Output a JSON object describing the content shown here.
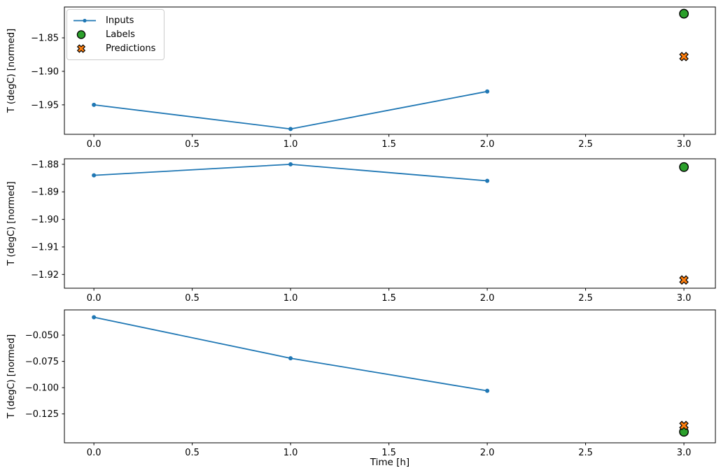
{
  "figure": {
    "background": "#ffffff",
    "xlabel": "Time [h]"
  },
  "colors": {
    "inputs": "#1f77b4",
    "labels": "#2ca02c",
    "predictions": "#ff7f0e",
    "marker_edge": "#000000",
    "axis": "#000000",
    "legend_border": "#cccccc"
  },
  "legend": {
    "position": "upper-left",
    "entries": [
      "Inputs",
      "Labels",
      "Predictions"
    ]
  },
  "chart_data": [
    {
      "type": "line",
      "title": "",
      "ylabel": "T (degC) [normed]",
      "xlabel": "",
      "grid": false,
      "legend_visible": true,
      "xlim": [
        -0.15,
        3.16
      ],
      "ylim": [
        -1.994,
        -1.804
      ],
      "xticks": [
        0.0,
        0.5,
        1.0,
        1.5,
        2.0,
        2.5,
        3.0
      ],
      "xtick_labels": [
        "0.0",
        "0.5",
        "1.0",
        "1.5",
        "2.0",
        "2.5",
        "3.0"
      ],
      "yticks": [
        -1.85,
        -1.9,
        -1.95
      ],
      "ytick_labels": [
        "−1.85",
        "−1.90",
        "−1.95"
      ],
      "series": [
        {
          "name": "Inputs",
          "kind": "line",
          "marker": "dot",
          "color": "#1f77b4",
          "x": [
            0,
            1,
            2
          ],
          "y": [
            -1.95,
            -1.986,
            -1.93
          ]
        },
        {
          "name": "Labels",
          "kind": "scatter",
          "marker": "circle",
          "color": "#2ca02c",
          "x": [
            3
          ],
          "y": [
            -1.814
          ]
        },
        {
          "name": "Predictions",
          "kind": "scatter",
          "marker": "X",
          "color": "#ff7f0e",
          "x": [
            3
          ],
          "y": [
            -1.878
          ]
        }
      ]
    },
    {
      "type": "line",
      "title": "",
      "ylabel": "T (degC) [normed]",
      "xlabel": "",
      "grid": false,
      "legend_visible": false,
      "xlim": [
        -0.15,
        3.16
      ],
      "ylim": [
        -1.925,
        -1.878
      ],
      "xticks": [
        0.0,
        0.5,
        1.0,
        1.5,
        2.0,
        2.5,
        3.0
      ],
      "xtick_labels": [
        "0.0",
        "0.5",
        "1.0",
        "1.5",
        "2.0",
        "2.5",
        "3.0"
      ],
      "yticks": [
        -1.88,
        -1.89,
        -1.9,
        -1.91,
        -1.92
      ],
      "ytick_labels": [
        "−1.88",
        "−1.89",
        "−1.90",
        "−1.91",
        "−1.92"
      ],
      "series": [
        {
          "name": "Inputs",
          "kind": "line",
          "marker": "dot",
          "color": "#1f77b4",
          "x": [
            0,
            1,
            2
          ],
          "y": [
            -1.884,
            -1.88,
            -1.886
          ]
        },
        {
          "name": "Labels",
          "kind": "scatter",
          "marker": "circle",
          "color": "#2ca02c",
          "x": [
            3
          ],
          "y": [
            -1.881
          ]
        },
        {
          "name": "Predictions",
          "kind": "scatter",
          "marker": "X",
          "color": "#ff7f0e",
          "x": [
            3
          ],
          "y": [
            -1.922
          ]
        }
      ]
    },
    {
      "type": "line",
      "title": "",
      "ylabel": "T (degC) [normed]",
      "xlabel": "Time [h]",
      "grid": false,
      "legend_visible": false,
      "xlim": [
        -0.15,
        3.16
      ],
      "ylim": [
        -0.1525,
        -0.026
      ],
      "xticks": [
        0.0,
        0.5,
        1.0,
        1.5,
        2.0,
        2.5,
        3.0
      ],
      "xtick_labels": [
        "0.0",
        "0.5",
        "1.0",
        "1.5",
        "2.0",
        "2.5",
        "3.0"
      ],
      "yticks": [
        -0.05,
        -0.075,
        -0.1,
        -0.125
      ],
      "ytick_labels": [
        "−0.050",
        "−0.075",
        "−0.100",
        "−0.125"
      ],
      "series": [
        {
          "name": "Inputs",
          "kind": "line",
          "marker": "dot",
          "color": "#1f77b4",
          "x": [
            0,
            1,
            2
          ],
          "y": [
            -0.033,
            -0.072,
            -0.103
          ]
        },
        {
          "name": "Labels",
          "kind": "scatter",
          "marker": "circle",
          "color": "#2ca02c",
          "x": [
            3
          ],
          "y": [
            -0.142
          ]
        },
        {
          "name": "Predictions",
          "kind": "scatter",
          "marker": "X",
          "color": "#ff7f0e",
          "x": [
            3
          ],
          "y": [
            -0.136
          ]
        }
      ]
    }
  ]
}
